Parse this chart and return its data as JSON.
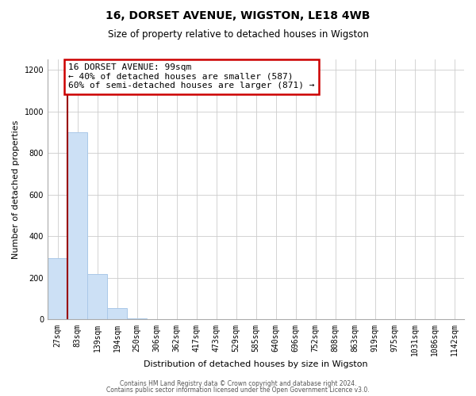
{
  "title": "16, DORSET AVENUE, WIGSTON, LE18 4WB",
  "subtitle": "Size of property relative to detached houses in Wigston",
  "xlabel": "Distribution of detached houses by size in Wigston",
  "ylabel": "Number of detached properties",
  "bin_labels": [
    "27sqm",
    "83sqm",
    "139sqm",
    "194sqm",
    "250sqm",
    "306sqm",
    "362sqm",
    "417sqm",
    "473sqm",
    "529sqm",
    "585sqm",
    "640sqm",
    "696sqm",
    "752sqm",
    "808sqm",
    "863sqm",
    "919sqm",
    "975sqm",
    "1031sqm",
    "1086sqm",
    "1142sqm"
  ],
  "bar_heights": [
    295,
    900,
    220,
    55,
    5,
    0,
    0,
    0,
    0,
    0,
    0,
    0,
    0,
    0,
    0,
    0,
    0,
    0,
    0,
    0,
    0
  ],
  "bar_color": "#cce0f5",
  "bar_edge_color": "#aac8e8",
  "property_line_color": "#990000",
  "annotation_text": "16 DORSET AVENUE: 99sqm\n← 40% of detached houses are smaller (587)\n60% of semi-detached houses are larger (871) →",
  "annotation_box_color": "#ffffff",
  "annotation_box_edge_color": "#cc0000",
  "ylim": [
    0,
    1250
  ],
  "yticks": [
    0,
    200,
    400,
    600,
    800,
    1000,
    1200
  ],
  "footer_line1": "Contains HM Land Registry data © Crown copyright and database right 2024.",
  "footer_line2": "Contains public sector information licensed under the Open Government Licence v3.0.",
  "background_color": "#ffffff",
  "grid_color": "#cccccc",
  "title_fontsize": 10,
  "subtitle_fontsize": 8.5,
  "axis_label_fontsize": 8,
  "tick_fontsize": 7,
  "annot_fontsize": 8,
  "footer_fontsize": 5.5
}
